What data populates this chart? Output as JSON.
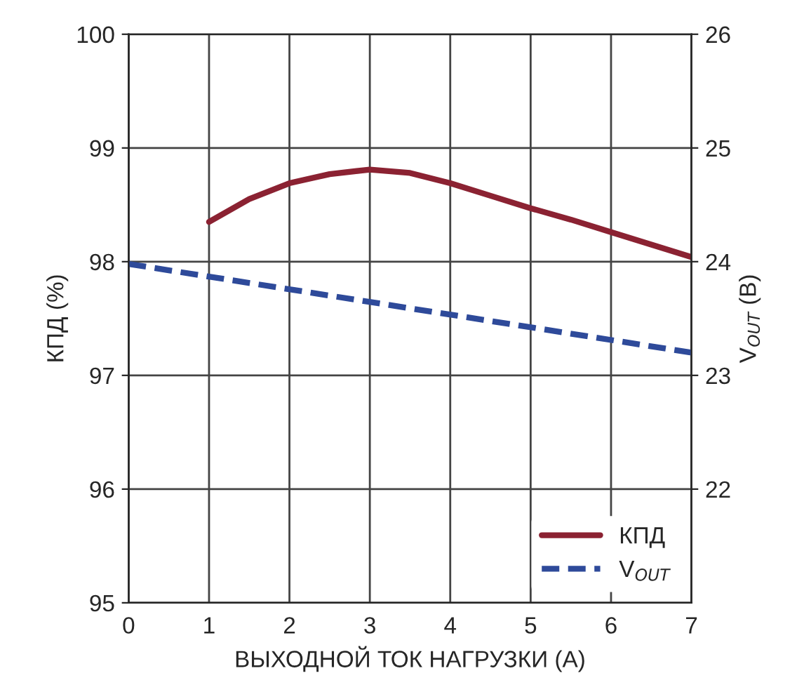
{
  "chart_data": {
    "type": "line",
    "xlabel": "ВЫХОДНОЙ ТОК НАГРУЗКИ (А)",
    "ylabel": "КПД (%)",
    "y2label": "V$_{OUT}$ (В)",
    "xlim": [
      0,
      7
    ],
    "xticks": [
      0,
      1,
      2,
      3,
      4,
      5,
      6,
      7
    ],
    "ylim": [
      95,
      100
    ],
    "yticks": [
      95,
      96,
      97,
      98,
      99,
      100
    ],
    "y2lim": [
      21,
      26
    ],
    "y2ticks": [
      22,
      23,
      24,
      25,
      26
    ],
    "grid": true,
    "legend": "bottom right",
    "series": [
      {
        "name": "КПД",
        "color": "#8b2232",
        "x": [
          1,
          1.5,
          2,
          2.5,
          3,
          3.5,
          4,
          4.5,
          5,
          5.5,
          6,
          6.5,
          7
        ],
        "values": [
          98.35,
          98.55,
          98.69,
          98.77,
          98.81,
          98.78,
          98.69,
          98.58,
          98.47,
          98.37,
          98.26,
          98.15,
          98.04
        ],
        "line_style": "solid"
      },
      {
        "name": "V$_{OUT}$",
        "color": "#2e4a9a",
        "axis": "y2",
        "x": [
          0,
          7
        ],
        "values": [
          23.98,
          23.2
        ],
        "line_style": "dashed"
      }
    ]
  }
}
